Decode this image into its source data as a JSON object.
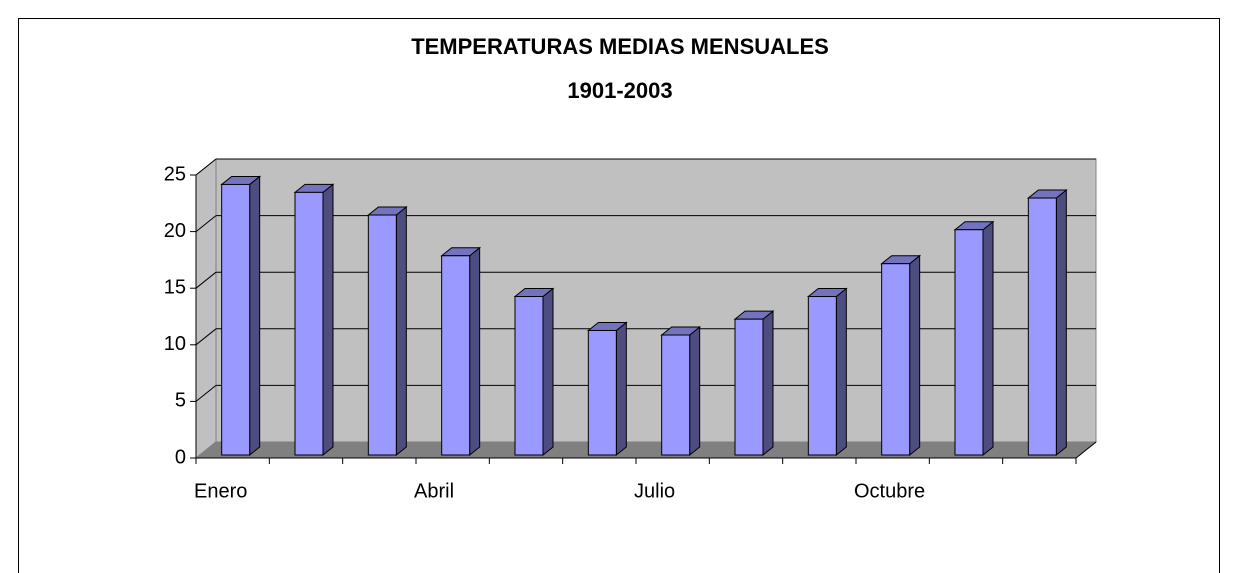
{
  "chart_data": {
    "type": "bar",
    "title": "TEMPERATURAS MEDIAS MENSUALES",
    "subtitle": "1901-2003",
    "categories": [
      "Enero",
      null,
      null,
      "Abril",
      null,
      null,
      "Julio",
      null,
      null,
      "Octubre",
      null,
      null
    ],
    "values": [
      23.9,
      23.2,
      21.2,
      17.6,
      14.0,
      11.0,
      10.6,
      12.0,
      14.0,
      16.9,
      19.9,
      22.7
    ],
    "color": "#9999ff",
    "ylim": [
      0,
      25
    ],
    "yticks": [
      0,
      5,
      10,
      15,
      20,
      25
    ],
    "grid": true
  }
}
